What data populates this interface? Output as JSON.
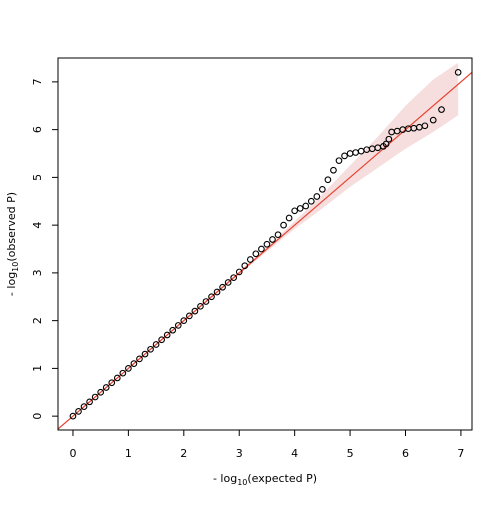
{
  "chart_data": {
    "type": "scatter",
    "xlabel": {
      "prefix": "-  log",
      "sub": "10",
      "suffix": "(expected P)"
    },
    "ylabel": {
      "prefix": "-  log",
      "sub": "10",
      "suffix": "(observed P)"
    },
    "xlim": [
      -0.27,
      7.2
    ],
    "ylim": [
      -0.29,
      7.5
    ],
    "xticks": [
      0,
      1,
      2,
      3,
      4,
      5,
      6,
      7
    ],
    "yticks": [
      0,
      1,
      2,
      3,
      4,
      5,
      6,
      7
    ],
    "diagonal": true,
    "diagonal_color": "#e8412f",
    "band_color": "#f6dede",
    "point_color": "#000000",
    "x": [
      0,
      0.1,
      0.2,
      0.3,
      0.4,
      0.5,
      0.6,
      0.7,
      0.8,
      0.9,
      1.0,
      1.1,
      1.2,
      1.3,
      1.4,
      1.5,
      1.6,
      1.7,
      1.8,
      1.9,
      2.0,
      2.1,
      2.2,
      2.3,
      2.4,
      2.5,
      2.6,
      2.7,
      2.8,
      2.9,
      3.0,
      3.1,
      3.2,
      3.3,
      3.4,
      3.5,
      3.6,
      3.7,
      3.8,
      3.9,
      4.0,
      4.1,
      4.2,
      4.3,
      4.4,
      4.5,
      4.6,
      4.7,
      4.8,
      4.9,
      5.0,
      5.1,
      5.2,
      5.3,
      5.4,
      5.5,
      5.6,
      5.65,
      5.7,
      5.75,
      5.85,
      5.95,
      6.05,
      6.15,
      6.25,
      6.35,
      6.5,
      6.65,
      6.95
    ],
    "values": [
      0,
      0.1,
      0.2,
      0.3,
      0.4,
      0.5,
      0.6,
      0.7,
      0.8,
      0.9,
      1.0,
      1.1,
      1.2,
      1.3,
      1.4,
      1.5,
      1.6,
      1.7,
      1.8,
      1.9,
      2.0,
      2.1,
      2.2,
      2.3,
      2.4,
      2.5,
      2.6,
      2.7,
      2.8,
      2.9,
      3.02,
      3.15,
      3.28,
      3.4,
      3.5,
      3.6,
      3.7,
      3.8,
      4.0,
      4.15,
      4.3,
      4.35,
      4.4,
      4.5,
      4.6,
      4.75,
      4.95,
      5.15,
      5.35,
      5.45,
      5.5,
      5.52,
      5.55,
      5.58,
      5.6,
      5.62,
      5.65,
      5.7,
      5.8,
      5.95,
      5.97,
      6.0,
      6.02,
      6.03,
      6.05,
      6.08,
      6.2,
      6.42,
      7.2
    ],
    "band": {
      "x": [
        0,
        3,
        4,
        4.5,
        5,
        5.5,
        6,
        6.5,
        6.95
      ],
      "lower": [
        0,
        2.97,
        3.92,
        4.35,
        4.8,
        5.2,
        5.6,
        5.95,
        6.3
      ],
      "upper": [
        0,
        3.03,
        4.08,
        4.65,
        5.25,
        5.85,
        6.5,
        7.05,
        7.4
      ]
    }
  }
}
